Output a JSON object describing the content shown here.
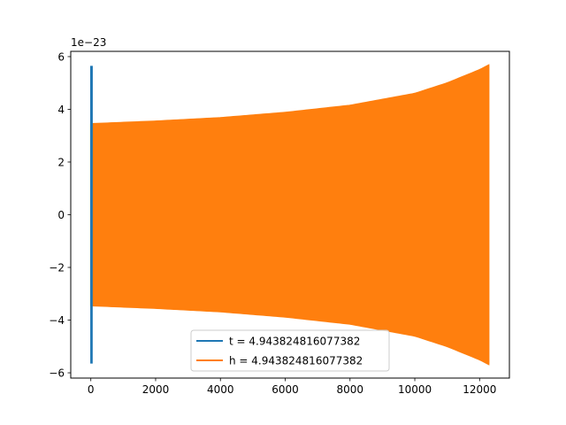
{
  "chart_data": {
    "type": "line",
    "title": "",
    "xlabel": "",
    "ylabel": "",
    "y_offset_label": "1e−23",
    "xlim": [
      -620,
      12920
    ],
    "ylim": [
      -6.2,
      6.2
    ],
    "x_ticks": [
      0,
      2000,
      4000,
      6000,
      8000,
      10000,
      12000
    ],
    "x_tick_labels": [
      "0",
      "2000",
      "4000",
      "6000",
      "8000",
      "10000",
      "12000"
    ],
    "y_ticks": [
      -6,
      -4,
      -2,
      0,
      2,
      4,
      6
    ],
    "y_tick_labels": [
      "−6",
      "−4",
      "−2",
      "0",
      "2",
      "4",
      "6"
    ],
    "grid": false,
    "legend_position": "lower center",
    "series": [
      {
        "name": "t = 4.943824816077382",
        "color": "#1f77b4",
        "x_range": [
          0,
          40
        ],
        "amplitude_start": 5.65,
        "amplitude_end": 5.65
      },
      {
        "name": "h = 4.943824816077382",
        "color": "#ff7f0e",
        "x_range": [
          0,
          12280
        ],
        "amplitude_envelope": [
          [
            0,
            3.45
          ],
          [
            2000,
            3.55
          ],
          [
            4000,
            3.68
          ],
          [
            6000,
            3.88
          ],
          [
            8000,
            4.15
          ],
          [
            10000,
            4.6
          ],
          [
            11000,
            5.0
          ],
          [
            12000,
            5.5
          ],
          [
            12280,
            5.68
          ]
        ]
      }
    ]
  }
}
